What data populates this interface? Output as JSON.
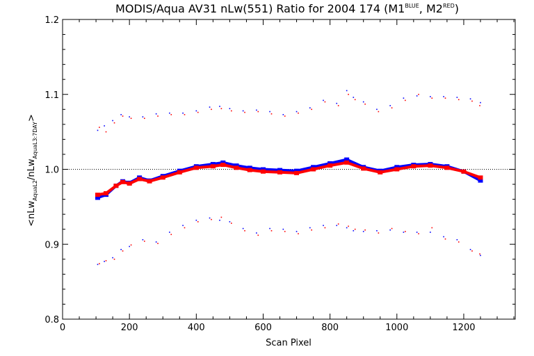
{
  "chart_data": {
    "type": "scatter",
    "title": {
      "main": "MODIS/Aqua AV31 nLw(551) Ratio for 2004 174 (M1",
      "sup1": "BLUE",
      "mid": ", M2",
      "sup2": "RED",
      "end": ")"
    },
    "xlabel": "Scan Pixel",
    "ylabel": {
      "a": "<nLw",
      "sub1": "AquaL2",
      "b": "/nLw",
      "sub2": "AquaL3:7DAY",
      "c": ">"
    },
    "xlim": [
      0,
      1354
    ],
    "ylim": [
      0.8,
      1.2
    ],
    "x_ticks": [
      0,
      200,
      400,
      600,
      800,
      1000,
      1200
    ],
    "x_tick_labels": [
      "0",
      "200",
      "400",
      "600",
      "800",
      "1000",
      "1200"
    ],
    "y_ticks": [
      0.8,
      0.9,
      1.0,
      1.1,
      1.2
    ],
    "y_tick_labels": [
      "0.8",
      "0.9",
      "1.0",
      "1.1",
      "1.2"
    ],
    "reference_line": 1.0,
    "grid": false,
    "colors": {
      "blue": "#0000ff",
      "red": "#ff0000",
      "axes": "#000000"
    },
    "series": [
      {
        "color": "#0000ff",
        "role": "mean",
        "x": [
          105,
          130,
          160,
          180,
          200,
          230,
          260,
          300,
          350,
          400,
          450,
          480,
          520,
          560,
          600,
          650,
          700,
          750,
          800,
          850,
          900,
          950,
          1000,
          1050,
          1100,
          1150,
          1200,
          1250
        ],
        "y": [
          0.962,
          0.966,
          0.978,
          0.984,
          0.982,
          0.989,
          0.985,
          0.991,
          0.998,
          1.004,
          1.007,
          1.009,
          1.005,
          1.002,
          1.0,
          0.999,
          0.998,
          1.003,
          1.008,
          1.013,
          1.003,
          0.998,
          1.003,
          1.006,
          1.007,
          1.004,
          0.997,
          0.985
        ]
      },
      {
        "color": "#ff0000",
        "role": "mean",
        "x": [
          105,
          130,
          160,
          180,
          200,
          230,
          260,
          300,
          350,
          400,
          450,
          480,
          520,
          560,
          600,
          650,
          700,
          750,
          800,
          850,
          900,
          950,
          1000,
          1050,
          1100,
          1150,
          1200,
          1250
        ],
        "y": [
          0.966,
          0.968,
          0.978,
          0.983,
          0.981,
          0.987,
          0.984,
          0.989,
          0.996,
          1.002,
          1.004,
          1.006,
          1.002,
          0.999,
          0.997,
          0.996,
          0.995,
          1.0,
          1.005,
          1.009,
          1.001,
          0.996,
          1.0,
          1.004,
          1.005,
          1.002,
          0.997,
          0.989
        ]
      },
      {
        "color": "#0000ff",
        "role": "upper",
        "x": [
          105,
          125,
          150,
          175,
          200,
          240,
          280,
          320,
          360,
          400,
          440,
          470,
          500,
          540,
          580,
          620,
          660,
          700,
          740,
          780,
          820,
          850,
          870,
          900,
          940,
          980,
          1020,
          1060,
          1100,
          1140,
          1180,
          1220,
          1250
        ],
        "y": [
          1.052,
          1.058,
          1.065,
          1.073,
          1.07,
          1.07,
          1.074,
          1.075,
          1.075,
          1.078,
          1.083,
          1.084,
          1.081,
          1.078,
          1.079,
          1.077,
          1.073,
          1.077,
          1.082,
          1.092,
          1.088,
          1.105,
          1.096,
          1.09,
          1.08,
          1.085,
          1.095,
          1.098,
          1.097,
          1.097,
          1.096,
          1.094,
          1.089
        ]
      },
      {
        "color": "#ff0000",
        "role": "upper",
        "x": [
          110,
          130,
          155,
          180,
          205,
          245,
          285,
          325,
          365,
          405,
          445,
          475,
          505,
          545,
          585,
          625,
          665,
          705,
          745,
          785,
          825,
          855,
          875,
          905,
          945,
          985,
          1025,
          1065,
          1105,
          1145,
          1185,
          1225,
          1248
        ],
        "y": [
          1.056,
          1.05,
          1.062,
          1.071,
          1.068,
          1.068,
          1.071,
          1.073,
          1.073,
          1.076,
          1.08,
          1.081,
          1.078,
          1.076,
          1.077,
          1.074,
          1.071,
          1.075,
          1.08,
          1.09,
          1.085,
          1.1,
          1.093,
          1.087,
          1.077,
          1.082,
          1.092,
          1.1,
          1.095,
          1.095,
          1.093,
          1.091,
          1.085
        ]
      },
      {
        "color": "#0000ff",
        "role": "lower",
        "x": [
          105,
          125,
          150,
          175,
          200,
          240,
          280,
          320,
          360,
          400,
          440,
          470,
          500,
          540,
          580,
          620,
          660,
          700,
          740,
          780,
          820,
          850,
          870,
          900,
          940,
          980,
          1020,
          1060,
          1100,
          1140,
          1180,
          1220,
          1250
        ],
        "y": [
          0.873,
          0.877,
          0.882,
          0.893,
          0.897,
          0.906,
          0.903,
          0.916,
          0.925,
          0.932,
          0.935,
          0.932,
          0.93,
          0.921,
          0.915,
          0.921,
          0.92,
          0.917,
          0.922,
          0.925,
          0.925,
          0.922,
          0.918,
          0.917,
          0.918,
          0.919,
          0.916,
          0.916,
          0.916,
          0.91,
          0.906,
          0.893,
          0.885
        ]
      },
      {
        "color": "#ff0000",
        "role": "lower",
        "x": [
          110,
          130,
          155,
          180,
          205,
          245,
          285,
          325,
          365,
          405,
          445,
          475,
          505,
          545,
          585,
          625,
          665,
          705,
          745,
          785,
          825,
          855,
          875,
          905,
          945,
          985,
          1025,
          1065,
          1105,
          1145,
          1185,
          1225,
          1248
        ],
        "y": [
          0.874,
          0.878,
          0.88,
          0.891,
          0.899,
          0.904,
          0.901,
          0.913,
          0.922,
          0.93,
          0.933,
          0.936,
          0.928,
          0.918,
          0.912,
          0.918,
          0.917,
          0.914,
          0.919,
          0.922,
          0.927,
          0.924,
          0.92,
          0.919,
          0.915,
          0.921,
          0.917,
          0.914,
          0.922,
          0.907,
          0.903,
          0.891,
          0.887
        ]
      }
    ]
  }
}
